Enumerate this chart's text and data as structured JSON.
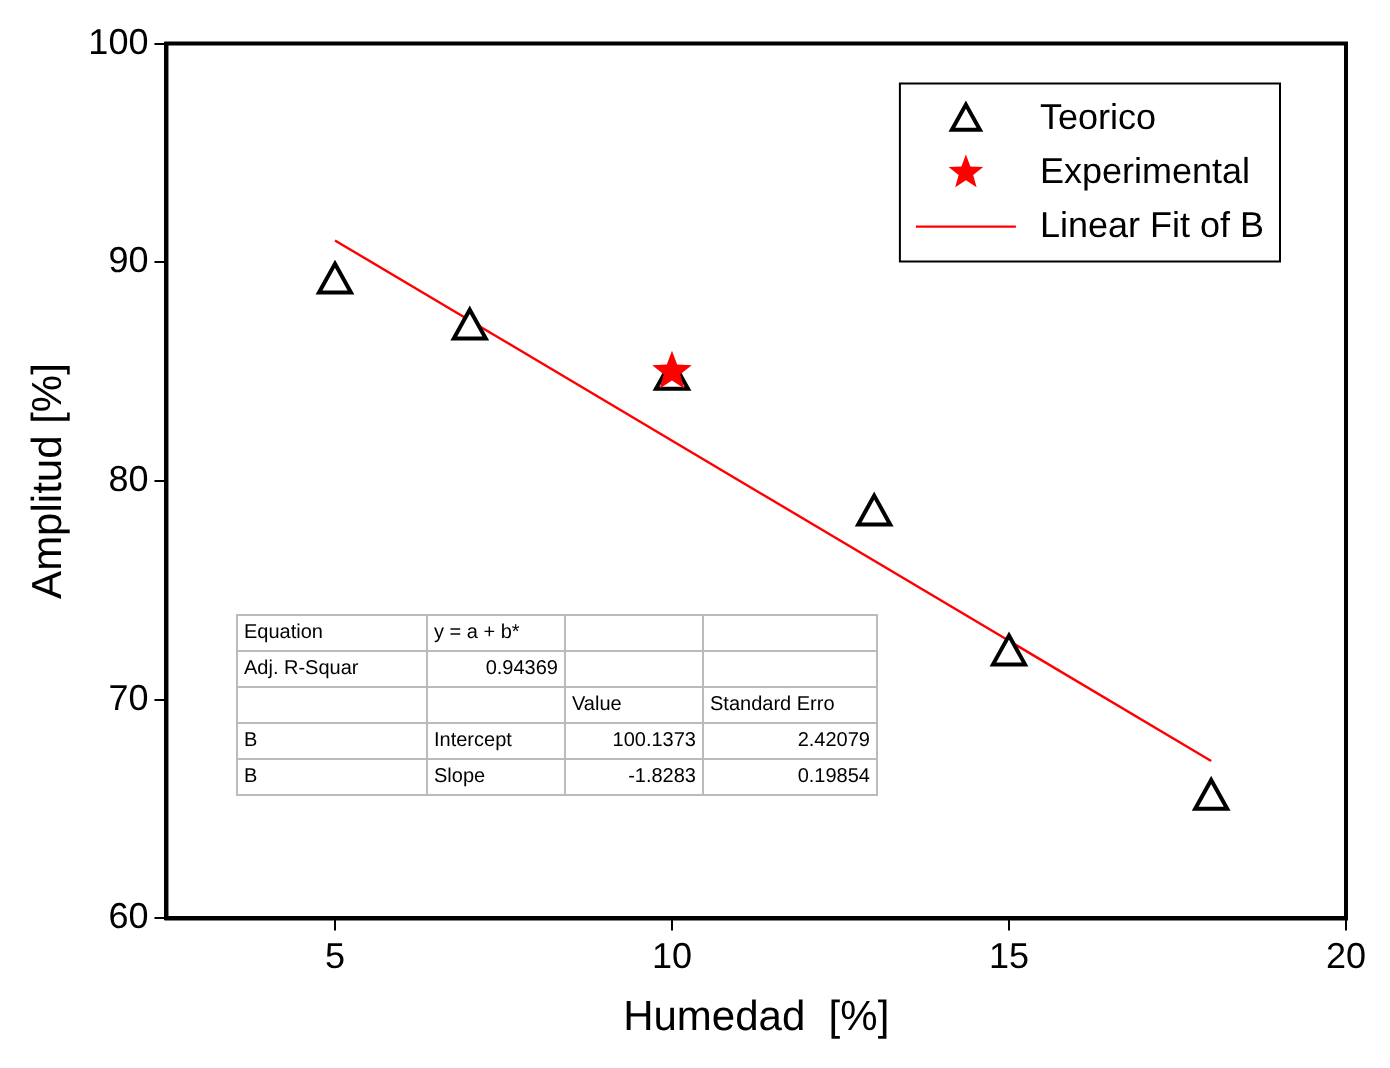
{
  "chart_data": {
    "type": "scatter",
    "xlabel": "Humedad  [%]",
    "ylabel": "Amplitud [%]",
    "xlim": [
      2.5,
      20
    ],
    "xticks": [
      5,
      10,
      15,
      20
    ],
    "ylim": [
      60,
      100
    ],
    "yticks": [
      60,
      70,
      80,
      90,
      100
    ],
    "grid": false,
    "legend": "top right",
    "series": [
      {
        "name": "Teorico",
        "color": "#000000",
        "marker": "triangle",
        "x": [
          5,
          7,
          10,
          13,
          15,
          18
        ],
        "values": [
          89.2,
          87.1,
          84.8,
          78.6,
          72.2,
          65.6
        ]
      },
      {
        "name": "Experimental",
        "color": "#ff0000",
        "marker": "star",
        "x": [
          10
        ],
        "values": [
          85.0
        ]
      },
      {
        "name": "Linear Fit of B",
        "type": "line",
        "color": "#ff0000",
        "marker": "none",
        "x": [
          5,
          18
        ],
        "values": [
          91.0,
          67.2
        ]
      }
    ],
    "annotations": [
      "Equation",
      "y = a + b*",
      "Adj. R-Squar",
      "0.94369",
      "Value",
      "Standard Erro",
      "B",
      "Intercept",
      "100.1373",
      "2.42079",
      "B",
      "Slope",
      "-1.8283",
      "0.19854"
    ]
  }
}
